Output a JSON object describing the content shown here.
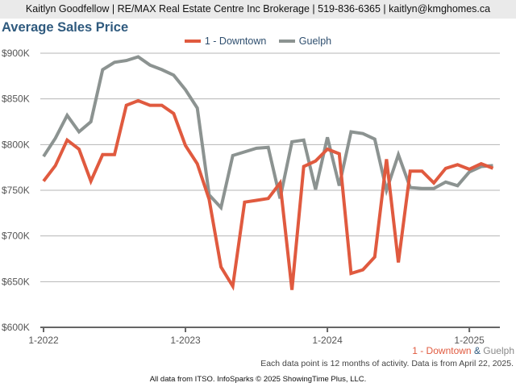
{
  "header": {
    "contact": "Kaitlyn Goodfellow | RE/MAX Real Estate Centre Inc Brokerage | 519-836-6365 | kaitlyn@kmghomes.ca"
  },
  "footer": {
    "series_a": "1 - Downtown",
    "amp": "&",
    "series_b": "Guelph",
    "note": "Each data point is 12 months of activity. Data is from April 22, 2025.",
    "source": "All data from ITSO. InfoSparks © 2025 ShowingTime Plus, LLC."
  },
  "chart_data": {
    "type": "line",
    "title": "Average Sales Price",
    "xlabel": "",
    "ylabel": "",
    "ylim": [
      600000,
      900000
    ],
    "yticks": [
      600000,
      650000,
      700000,
      750000,
      800000,
      850000,
      900000
    ],
    "ytick_labels": [
      "$600K",
      "$650K",
      "$700K",
      "$750K",
      "$800K",
      "$850K",
      "$900K"
    ],
    "x_start": "1-2022",
    "x_step": "month",
    "xtick_labels": [
      {
        "index": 0,
        "label": "1-2022"
      },
      {
        "index": 12,
        "label": "1-2023"
      },
      {
        "index": 24,
        "label": "1-2024"
      },
      {
        "index": 36,
        "label": "1-2025"
      }
    ],
    "grid": true,
    "legend": "top-center",
    "series": [
      {
        "name": "1 - Downtown",
        "color": "#e05a3f",
        "values": [
          760000,
          777000,
          805000,
          795000,
          760000,
          789000,
          789000,
          843000,
          848000,
          843000,
          843000,
          834000,
          799000,
          779000,
          740000,
          666000,
          645000,
          737000,
          739000,
          741000,
          758000,
          641000,
          776000,
          782000,
          795000,
          790000,
          659000,
          663000,
          677000,
          784000,
          671000,
          771000,
          771000,
          758000,
          774000,
          778000,
          773000,
          779000,
          774000
        ]
      },
      {
        "name": "Guelph",
        "color": "#8c9391",
        "values": [
          787000,
          807000,
          832000,
          814000,
          825000,
          882000,
          890000,
          892000,
          896000,
          887000,
          882000,
          876000,
          860000,
          840000,
          745000,
          731000,
          788000,
          792000,
          796000,
          797000,
          741000,
          803000,
          805000,
          751000,
          808000,
          755000,
          814000,
          812000,
          806000,
          750000,
          789000,
          753000,
          752000,
          752000,
          759000,
          755000,
          770000,
          776000,
          777000
        ]
      }
    ]
  }
}
